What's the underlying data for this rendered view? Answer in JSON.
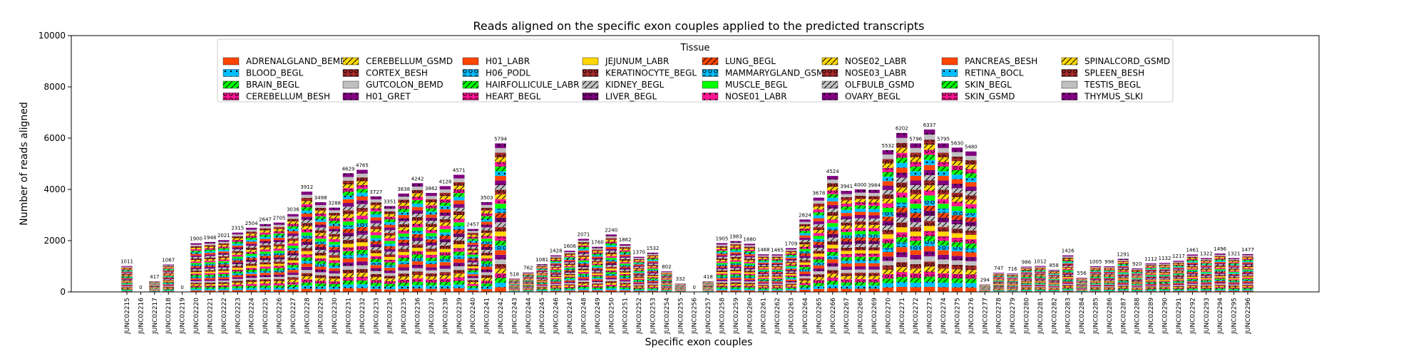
{
  "chart_data": {
    "type": "bar",
    "stacked": true,
    "title": "Reads aligned on the specific exon couples applied to the predicted transcripts",
    "xlabel": "Specific exon couples",
    "ylabel": "Number of reads aligned",
    "ylim": [
      0,
      10000
    ],
    "yticks": [
      0,
      2000,
      4000,
      6000,
      8000,
      10000
    ],
    "grid": false,
    "legend_title": "Tissue",
    "legend_position": "top-center",
    "categories": [
      "JUNC02215",
      "JUNC02216",
      "JUNC02217",
      "JUNC02218",
      "JUNC02219",
      "JUNC02220",
      "JUNC02221",
      "JUNC02222",
      "JUNC02223",
      "JUNC02224",
      "JUNC02225",
      "JUNC02226",
      "JUNC02227",
      "JUNC02228",
      "JUNC02229",
      "JUNC02230",
      "JUNC02231",
      "JUNC02232",
      "JUNC02233",
      "JUNC02234",
      "JUNC02235",
      "JUNC02236",
      "JUNC02237",
      "JUNC02238",
      "JUNC02239",
      "JUNC02240",
      "JUNC02241",
      "JUNC02242",
      "JUNC02243",
      "JUNC02244",
      "JUNC02245",
      "JUNC02246",
      "JUNC02247",
      "JUNC02248",
      "JUNC02249",
      "JUNC02250",
      "JUNC02251",
      "JUNC02252",
      "JUNC02253",
      "JUNC02254",
      "JUNC02255",
      "JUNC02256",
      "JUNC02257",
      "JUNC02258",
      "JUNC02259",
      "JUNC02260",
      "JUNC02261",
      "JUNC02262",
      "JUNC02263",
      "JUNC02264",
      "JUNC02265",
      "JUNC02266",
      "JUNC02267",
      "JUNC02268",
      "JUNC02269",
      "JUNC02270",
      "JUNC02271",
      "JUNC02272",
      "JUNC02273",
      "JUNC02274",
      "JUNC02275",
      "JUNC02276",
      "JUNC02277",
      "JUNC02278",
      "JUNC02279",
      "JUNC02280",
      "JUNC02281",
      "JUNC02282",
      "JUNC02283",
      "JUNC02284",
      "JUNC02285",
      "JUNC02286",
      "JUNC02287",
      "JUNC02288",
      "JUNC02289",
      "JUNC02290",
      "JUNC02291",
      "JUNC02292",
      "JUNC02293",
      "JUNC02294",
      "JUNC02295",
      "JUNC02296"
    ],
    "totals": [
      1011,
      0,
      417,
      1067,
      0,
      1900,
      1948,
      2021,
      2315,
      2504,
      2647,
      2705,
      3036,
      3912,
      3498,
      3288,
      4629,
      4765,
      3727,
      3351,
      3838,
      4242,
      3862,
      4128,
      4571,
      2457,
      3503,
      5794,
      518,
      762,
      1081,
      1428,
      1606,
      2071,
      1760,
      2240,
      1862,
      1370,
      1532,
      802,
      332,
      0,
      418,
      1905,
      1983,
      1880,
      1468,
      1465,
      1709,
      2824,
      3678,
      4524,
      3941,
      4000,
      3984,
      5532,
      6202,
      5796,
      6337,
      5795,
      5630,
      5480,
      294,
      747,
      716,
      986,
      1012,
      858,
      1426,
      556,
      1005,
      998,
      1291,
      920,
      1112,
      1132,
      1217,
      1461,
      1322,
      1496,
      1321,
      1477
    ],
    "series": [
      {
        "name": "ADRENALGLAND_BEMD",
        "color": "#ff4500",
        "hatch": ""
      },
      {
        "name": "BLOOD_BEGL",
        "color": "#00bfff",
        "hatch": "dot"
      },
      {
        "name": "BRAIN_BEGL",
        "color": "#00ff00",
        "hatch": "slash"
      },
      {
        "name": "CEREBELLUM_BESH",
        "color": "#ff1493",
        "hatch": "circle"
      },
      {
        "name": "CEREBELLUM_GSMD",
        "color": "#ffd700",
        "hatch": "slash"
      },
      {
        "name": "CORTEX_BESH",
        "color": "#a52a2a",
        "hatch": "circle"
      },
      {
        "name": "GUTCOLON_BEMD",
        "color": "#c0c0c0",
        "hatch": ""
      },
      {
        "name": "H01_GRET",
        "color": "#800080",
        "hatch": "dot"
      },
      {
        "name": "H01_LABR",
        "color": "#ff4500",
        "hatch": ""
      },
      {
        "name": "H06_PODL",
        "color": "#00bfff",
        "hatch": "circle"
      },
      {
        "name": "HAIRFOLLICULE_LABR",
        "color": "#00ff00",
        "hatch": "slash"
      },
      {
        "name": "HEART_BEGL",
        "color": "#ff1493",
        "hatch": "circle"
      },
      {
        "name": "JEJUNUM_LABR",
        "color": "#ffd700",
        "hatch": ""
      },
      {
        "name": "KERATINOCYTE_BEGL",
        "color": "#a52a2a",
        "hatch": "circle"
      },
      {
        "name": "KIDNEY_BEGL",
        "color": "#c0c0c0",
        "hatch": "slash"
      },
      {
        "name": "LIVER_BEGL",
        "color": "#800080",
        "hatch": "circle"
      },
      {
        "name": "LUNG_BEGL",
        "color": "#ff4500",
        "hatch": "slash"
      },
      {
        "name": "MAMMARYGLAND_GSMD",
        "color": "#00bfff",
        "hatch": "circle"
      },
      {
        "name": "MUSCLE_BEGL",
        "color": "#00ff00",
        "hatch": ""
      },
      {
        "name": "NOSE01_LABR",
        "color": "#ff1493",
        "hatch": "dot"
      },
      {
        "name": "NOSE02_LABR",
        "color": "#ffd700",
        "hatch": "slash"
      },
      {
        "name": "NOSE03_LABR",
        "color": "#a52a2a",
        "hatch": "circle"
      },
      {
        "name": "OLFBULB_GSMD",
        "color": "#c0c0c0",
        "hatch": "slash"
      },
      {
        "name": "OVARY_BEGL",
        "color": "#800080",
        "hatch": "dot"
      },
      {
        "name": "PANCREAS_BESH",
        "color": "#ff4500",
        "hatch": ""
      },
      {
        "name": "RETINA_BOCL",
        "color": "#00bfff",
        "hatch": "dot"
      },
      {
        "name": "SKIN_BEGL",
        "color": "#00ff00",
        "hatch": "slash"
      },
      {
        "name": "SKIN_GSMD",
        "color": "#ff1493",
        "hatch": "circle"
      },
      {
        "name": "SPINALCORD_GSMD",
        "color": "#ffd700",
        "hatch": "slash"
      },
      {
        "name": "SPLEEN_BESH",
        "color": "#a52a2a",
        "hatch": "circle"
      },
      {
        "name": "TESTIS_BEGL",
        "color": "#c0c0c0",
        "hatch": ""
      },
      {
        "name": "THYMUS_SLKI",
        "color": "#800080",
        "hatch": "dot"
      }
    ]
  }
}
